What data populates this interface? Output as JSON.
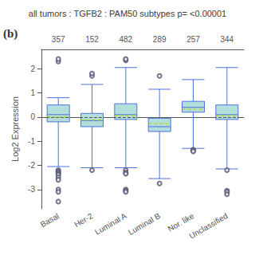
{
  "chart_data": {
    "type": "box",
    "title": "all tumors : TGFB2 : PAM50 subtypes p= <0.00001",
    "panel_label": "(b)",
    "categories": [
      "Basal",
      "Her-2",
      "Luminal A",
      "Luminal B",
      "Nor. like",
      "Unclassified"
    ],
    "sample_counts": [
      "357",
      "152",
      "482",
      "289",
      "257",
      "344"
    ],
    "ylabel": "Log2 Expression",
    "ylim": [
      -3.8,
      2.8
    ],
    "yticks": [
      -3,
      -2,
      -1,
      0,
      1,
      2
    ],
    "grid": false,
    "hline_y": 0.0,
    "color": "#b2dfdb",
    "boxes": [
      {
        "q1": -0.2,
        "median": 0.1,
        "q3": 0.5,
        "mean": 0.0,
        "whisker_low": -2.05,
        "whisker_high": 0.8,
        "outliers_low": [
          -2.2,
          -2.25,
          -2.3,
          -2.35,
          -2.4,
          -2.5,
          -2.6,
          -3.0,
          -3.1,
          -3.5
        ],
        "outliers_high": [
          2.3,
          2.4
        ]
      },
      {
        "q1": -0.4,
        "median": -0.15,
        "q3": 0.15,
        "mean": -0.12,
        "whisker_low": -2.1,
        "whisker_high": 1.35,
        "outliers_low": [
          -2.2
        ],
        "outliers_high": [
          1.7,
          1.8
        ]
      },
      {
        "q1": -0.1,
        "median": 0.1,
        "q3": 0.55,
        "mean": 0.05,
        "whisker_low": -2.1,
        "whisker_high": 2.05,
        "outliers_low": [
          -2.2,
          -2.3,
          -2.35,
          -3.0,
          -3.05,
          -3.1
        ],
        "outliers_high": [
          2.35,
          2.4
        ]
      },
      {
        "q1": -0.6,
        "median": -0.4,
        "q3": -0.05,
        "mean": -0.28,
        "whisker_low": -2.55,
        "whisker_high": 1.15,
        "outliers_low": [
          -2.75
        ],
        "outliers_high": [
          1.7
        ]
      },
      {
        "q1": 0.2,
        "median": 0.4,
        "q3": 0.65,
        "mean": 0.32,
        "whisker_low": -1.3,
        "whisker_high": 1.55,
        "outliers_low": [
          -1.35,
          -1.38,
          -1.42
        ],
        "outliers_high": []
      },
      {
        "q1": -0.1,
        "median": 0.1,
        "q3": 0.5,
        "mean": 0.05,
        "whisker_low": -2.15,
        "whisker_high": 2.05,
        "outliers_low": [
          -2.2,
          -3.05,
          -3.1,
          -3.2
        ],
        "outliers_high": []
      }
    ]
  }
}
